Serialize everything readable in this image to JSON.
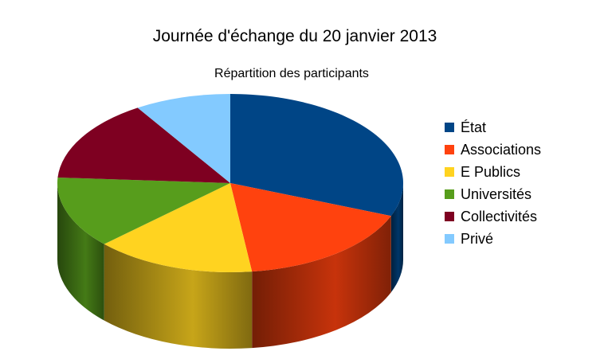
{
  "chart_data": {
    "type": "pie",
    "style": "3d",
    "title": "Journée d'échange du 20 janvier 2013",
    "subtitle": "Répartition des participants",
    "legend_position": "right",
    "slices": [
      {
        "label": "État",
        "value": 31,
        "color": "#004586"
      },
      {
        "label": "Associations",
        "value": 17,
        "color": "#ff420e"
      },
      {
        "label": "E Publics",
        "value": 15,
        "color": "#ffd320"
      },
      {
        "label": "Universités",
        "value": 13,
        "color": "#579d1c"
      },
      {
        "label": "Collectivités",
        "value": 15,
        "color": "#7e0021"
      },
      {
        "label": "Privé",
        "value": 9,
        "color": "#83caff"
      }
    ]
  }
}
